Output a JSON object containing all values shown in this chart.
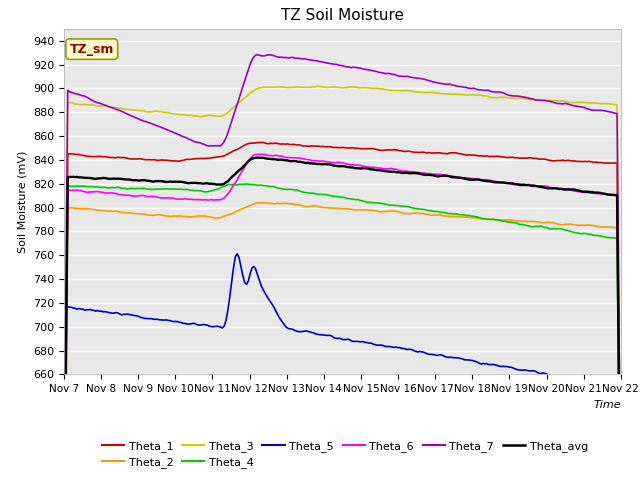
{
  "title": "TZ Soil Moisture",
  "xlabel": "Time",
  "ylabel": "Soil Moisture (mV)",
  "ylim": [
    660,
    950
  ],
  "xlim": [
    0,
    15
  ],
  "background_color": "#e8e8e8",
  "grid_color": "white",
  "xtick_labels": [
    "Nov 7",
    "Nov 8",
    "Nov 9",
    "Nov 10",
    "Nov 11",
    "Nov 12",
    "Nov 13",
    "Nov 14",
    "Nov 15",
    "Nov 16",
    "Nov 17",
    "Nov 18",
    "Nov 19",
    "Nov 20",
    "Nov 21",
    "Nov 22"
  ],
  "ytick_values": [
    660,
    680,
    700,
    720,
    740,
    760,
    780,
    800,
    820,
    840,
    860,
    880,
    900,
    920,
    940
  ],
  "legend_label": "TZ_sm",
  "series_colors": {
    "Theta_1": "#cc0000",
    "Theta_2": "#ff9900",
    "Theta_3": "#cccc00",
    "Theta_4": "#00cc00",
    "Theta_5": "#0000cc",
    "Theta_6": "#ff00ff",
    "Theta_7": "#9900cc",
    "Theta_avg": "#000000"
  },
  "n_points": 300
}
